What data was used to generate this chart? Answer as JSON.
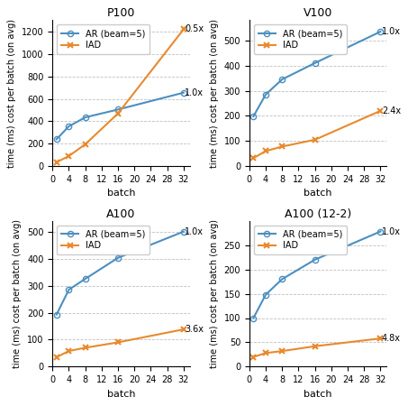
{
  "subplots": [
    {
      "title": "P100",
      "batch": [
        1,
        4,
        8,
        16,
        32
      ],
      "ar": [
        240,
        355,
        435,
        505,
        655
      ],
      "iad": [
        35,
        90,
        195,
        470,
        1220
      ],
      "ar_label": "AR (beam=5)",
      "iad_label": "IAD",
      "ylim": [
        0,
        1300
      ],
      "yticks": [
        0,
        200,
        400,
        600,
        800,
        1000,
        1200
      ],
      "ann_ar_text": "1.0x",
      "ann_ar_y": 655,
      "ann_iad_text": "0.5x",
      "ann_iad_y": 1220
    },
    {
      "title": "V100",
      "batch": [
        1,
        4,
        8,
        16,
        32
      ],
      "ar": [
        198,
        285,
        345,
        410,
        535
      ],
      "iad": [
        32,
        60,
        78,
        105,
        220
      ],
      "ar_label": "AR (beam=5)",
      "iad_label": "IAD",
      "ylim": [
        0,
        580
      ],
      "yticks": [
        0,
        100,
        200,
        300,
        400,
        500
      ],
      "ann_ar_text": "1.0x",
      "ann_ar_y": 535,
      "ann_iad_text": "2.4x",
      "ann_iad_y": 220
    },
    {
      "title": "A100",
      "batch": [
        1,
        4,
        8,
        16,
        32
      ],
      "ar": [
        193,
        285,
        325,
        403,
        500
      ],
      "iad": [
        35,
        58,
        70,
        90,
        138
      ],
      "ar_label": "AR (beam=5)",
      "iad_label": "IAD",
      "ylim": [
        0,
        540
      ],
      "yticks": [
        0,
        100,
        200,
        300,
        400,
        500
      ],
      "ann_ar_text": "1.0x",
      "ann_ar_y": 500,
      "ann_iad_text": "3.6x",
      "ann_iad_y": 138
    },
    {
      "title": "A100 (12-2)",
      "batch": [
        1,
        4,
        8,
        16,
        32
      ],
      "ar": [
        100,
        148,
        180,
        220,
        278
      ],
      "iad": [
        20,
        28,
        32,
        42,
        58
      ],
      "ar_label": "AR (beam=5)",
      "iad_label": "IAD",
      "ylim": [
        0,
        300
      ],
      "yticks": [
        0,
        50,
        100,
        150,
        200,
        250
      ],
      "ann_ar_text": "1.0x",
      "ann_ar_y": 278,
      "ann_iad_text": "4.8x",
      "ann_iad_y": 58
    }
  ],
  "color_ar": "#4C8FC0",
  "color_iad": "#E88A2E",
  "xlabel": "batch",
  "ylabel": "time (ms) cost per batch (on avg)",
  "xticks": [
    0,
    4,
    8,
    12,
    16,
    20,
    24,
    28,
    32
  ],
  "xlim": [
    0,
    33.5
  ],
  "figsize": [
    4.53,
    4.5
  ],
  "dpi": 100
}
